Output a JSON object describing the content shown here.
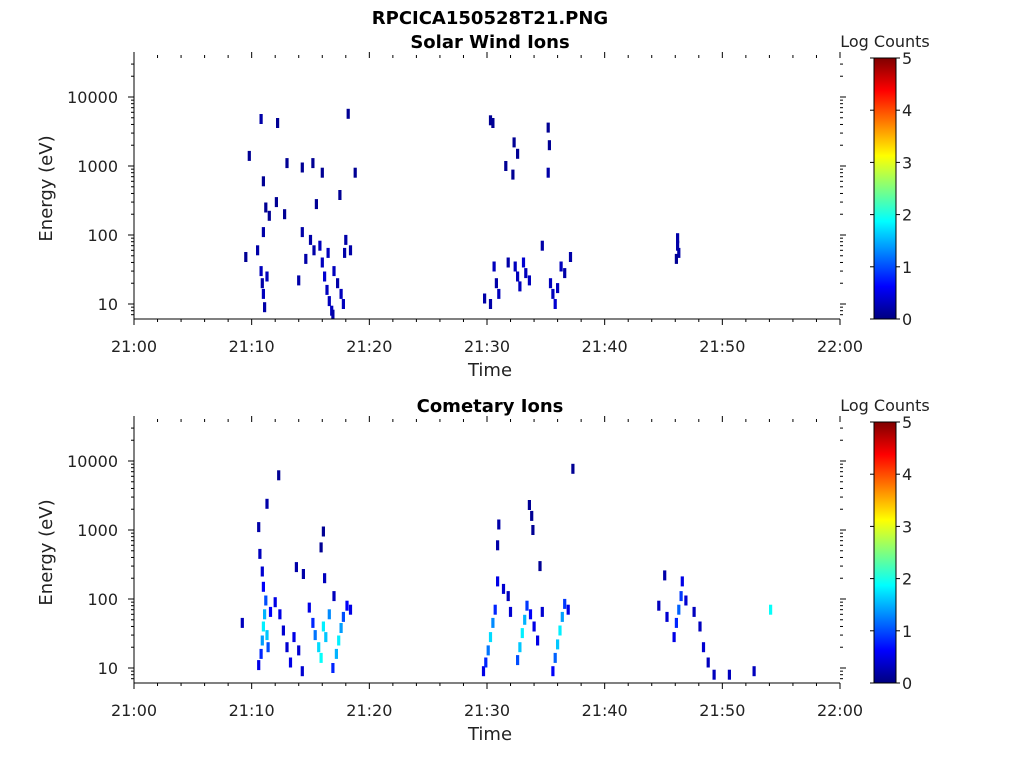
{
  "figure_title": "RPCICA150528T21.PNG",
  "colorbar": {
    "label": "Log Counts",
    "ticks": [
      "0",
      "1",
      "2",
      "3",
      "4",
      "5"
    ],
    "stops": [
      "#00007f",
      "#0000ff",
      "#007fff",
      "#00ffff",
      "#7fff7f",
      "#ffff00",
      "#ff7f00",
      "#ff0000",
      "#7f0000"
    ]
  },
  "chart_data": [
    {
      "type": "heatmap",
      "title": "Solar Wind Ions",
      "xlabel": "Time",
      "ylabel": "Energy (eV)",
      "x_ticks": [
        "21:00",
        "21:10",
        "21:20",
        "21:30",
        "21:40",
        "21:50",
        "22:00"
      ],
      "y_ticks": [
        "10",
        "100",
        "1000",
        "10000"
      ],
      "y_scale": "log",
      "zlim": [
        0,
        5
      ],
      "cells": [
        [
          9.5,
          48,
          0.1
        ],
        [
          10.5,
          60,
          0.2
        ],
        [
          10.8,
          30,
          0.3
        ],
        [
          10.9,
          20,
          0.2
        ],
        [
          11.0,
          14,
          0.3
        ],
        [
          11.1,
          9,
          0.2
        ],
        [
          11.3,
          25,
          0.3
        ],
        [
          11.0,
          110,
          0.2
        ],
        [
          11.2,
          250,
          0.1
        ],
        [
          12.1,
          300,
          0.1
        ],
        [
          13.0,
          1100,
          0.1
        ],
        [
          11.0,
          600,
          0.1
        ],
        [
          10.8,
          4800,
          0.2
        ],
        [
          12.2,
          4200,
          0.1
        ],
        [
          9.8,
          1400,
          0.1
        ],
        [
          11.5,
          190,
          0.1
        ],
        [
          12.8,
          200,
          0.1
        ],
        [
          14.3,
          110,
          0.2
        ],
        [
          14.6,
          45,
          0.2
        ],
        [
          15.0,
          85,
          0.2
        ],
        [
          15.3,
          60,
          0.2
        ],
        [
          15.8,
          70,
          0.3
        ],
        [
          16.0,
          40,
          0.3
        ],
        [
          16.2,
          25,
          0.4
        ],
        [
          16.4,
          16,
          0.3
        ],
        [
          16.6,
          11,
          0.3
        ],
        [
          16.8,
          8,
          0.3
        ],
        [
          16.5,
          55,
          0.3
        ],
        [
          17.0,
          30,
          0.3
        ],
        [
          17.3,
          20,
          0.2
        ],
        [
          17.6,
          14,
          0.3
        ],
        [
          17.8,
          10,
          0.3
        ],
        [
          18.0,
          85,
          0.2
        ],
        [
          17.9,
          55,
          0.2
        ],
        [
          18.4,
          60,
          0.2
        ],
        [
          15.2,
          1100,
          0.1
        ],
        [
          14.3,
          950,
          0.1
        ],
        [
          16.0,
          800,
          0.1
        ],
        [
          18.8,
          800,
          0.1
        ],
        [
          17.5,
          380,
          0.1
        ],
        [
          18.2,
          5700,
          0.1
        ],
        [
          15.5,
          280,
          0.1
        ],
        [
          14.0,
          22,
          0.2
        ],
        [
          16.9,
          7,
          0.2
        ],
        [
          29.8,
          12,
          0.2
        ],
        [
          30.3,
          10,
          0.2
        ],
        [
          30.6,
          35,
          0.3
        ],
        [
          30.8,
          20,
          0.2
        ],
        [
          31.0,
          14,
          0.3
        ],
        [
          32.4,
          35,
          0.3
        ],
        [
          32.6,
          25,
          0.3
        ],
        [
          32.8,
          18,
          0.3
        ],
        [
          33.1,
          40,
          0.4
        ],
        [
          33.3,
          28,
          0.3
        ],
        [
          33.6,
          22,
          0.3
        ],
        [
          35.4,
          20,
          0.3
        ],
        [
          35.6,
          14,
          0.3
        ],
        [
          35.8,
          10,
          0.4
        ],
        [
          36.0,
          17,
          0.3
        ],
        [
          36.3,
          35,
          0.3
        ],
        [
          36.6,
          28,
          0.2
        ],
        [
          37.1,
          48,
          0.2
        ],
        [
          31.8,
          40,
          0.2
        ],
        [
          34.7,
          70,
          0.2
        ],
        [
          30.3,
          4600,
          0.1
        ],
        [
          30.5,
          4200,
          0.1
        ],
        [
          32.3,
          2200,
          0.1
        ],
        [
          32.6,
          1500,
          0.1
        ],
        [
          35.2,
          3600,
          0.1
        ],
        [
          35.3,
          2000,
          0.1
        ],
        [
          35.2,
          800,
          0.2
        ],
        [
          31.6,
          1000,
          0.1
        ],
        [
          32.2,
          750,
          0.1
        ],
        [
          46.2,
          90,
          0.2
        ],
        [
          46.2,
          70,
          0.2
        ],
        [
          46.3,
          55,
          0.2
        ],
        [
          46.1,
          45,
          0.1
        ]
      ]
    },
    {
      "type": "heatmap",
      "title": "Cometary Ions",
      "xlabel": "Time",
      "ylabel": "Energy (eV)",
      "x_ticks": [
        "21:00",
        "21:10",
        "21:20",
        "21:30",
        "21:40",
        "21:50",
        "22:00"
      ],
      "y_ticks": [
        "10",
        "100",
        "1000",
        "10000"
      ],
      "y_scale": "log",
      "zlim": [
        0,
        5
      ],
      "cells": [
        [
          9.2,
          45,
          0.3
        ],
        [
          10.6,
          11,
          0.5
        ],
        [
          10.8,
          16,
          0.8
        ],
        [
          10.9,
          25,
          1.4
        ],
        [
          11.0,
          40,
          1.8
        ],
        [
          11.1,
          60,
          1.5
        ],
        [
          11.2,
          95,
          1.0
        ],
        [
          11.0,
          150,
          0.6
        ],
        [
          10.9,
          250,
          0.4
        ],
        [
          10.7,
          450,
          0.3
        ],
        [
          10.6,
          1100,
          0.2
        ],
        [
          11.3,
          2400,
          0.2
        ],
        [
          12.3,
          6200,
          0.1
        ],
        [
          11.3,
          30,
          1.6
        ],
        [
          11.4,
          20,
          1.0
        ],
        [
          11.6,
          65,
          0.6
        ],
        [
          12.0,
          90,
          0.5
        ],
        [
          12.4,
          60,
          0.5
        ],
        [
          12.7,
          35,
          0.4
        ],
        [
          13.0,
          20,
          0.4
        ],
        [
          13.3,
          12,
          0.5
        ],
        [
          13.6,
          28,
          0.5
        ],
        [
          14.0,
          18,
          0.4
        ],
        [
          14.3,
          9,
          0.4
        ],
        [
          14.9,
          75,
          0.5
        ],
        [
          15.2,
          45,
          0.8
        ],
        [
          15.4,
          30,
          1.2
        ],
        [
          15.7,
          20,
          1.7
        ],
        [
          15.9,
          14,
          1.9
        ],
        [
          16.1,
          40,
          1.8
        ],
        [
          16.3,
          28,
          1.6
        ],
        [
          16.6,
          60,
          1.3
        ],
        [
          16.9,
          10,
          0.8
        ],
        [
          17.2,
          16,
          1.5
        ],
        [
          17.4,
          25,
          1.8
        ],
        [
          17.6,
          38,
          1.4
        ],
        [
          17.8,
          55,
          1.0
        ],
        [
          18.1,
          80,
          0.6
        ],
        [
          18.4,
          70,
          0.5
        ],
        [
          17.0,
          110,
          0.3
        ],
        [
          16.2,
          200,
          0.3
        ],
        [
          13.8,
          290,
          0.2
        ],
        [
          14.4,
          230,
          0.2
        ],
        [
          15.9,
          560,
          0.1
        ],
        [
          16.1,
          950,
          0.1
        ],
        [
          29.7,
          9,
          0.5
        ],
        [
          29.9,
          12,
          0.8
        ],
        [
          30.1,
          18,
          1.2
        ],
        [
          30.3,
          28,
          1.7
        ],
        [
          30.5,
          45,
          1.3
        ],
        [
          30.7,
          70,
          0.8
        ],
        [
          30.9,
          180,
          0.5
        ],
        [
          30.9,
          600,
          0.2
        ],
        [
          31.0,
          1200,
          0.2
        ],
        [
          31.4,
          140,
          0.4
        ],
        [
          31.8,
          110,
          0.3
        ],
        [
          32.6,
          13,
          1.0
        ],
        [
          32.8,
          20,
          1.6
        ],
        [
          33.0,
          32,
          1.8
        ],
        [
          33.2,
          50,
          1.5
        ],
        [
          33.4,
          80,
          0.9
        ],
        [
          33.7,
          60,
          0.6
        ],
        [
          34.0,
          40,
          0.5
        ],
        [
          34.3,
          25,
          0.5
        ],
        [
          33.6,
          2300,
          0.1
        ],
        [
          33.8,
          1600,
          0.1
        ],
        [
          33.9,
          1000,
          0.1
        ],
        [
          34.5,
          300,
          0.1
        ],
        [
          35.6,
          9,
          0.6
        ],
        [
          35.8,
          14,
          1.1
        ],
        [
          36.0,
          22,
          1.6
        ],
        [
          36.2,
          35,
          1.8
        ],
        [
          36.4,
          55,
          1.4
        ],
        [
          36.6,
          85,
          0.9
        ],
        [
          36.9,
          70,
          0.5
        ],
        [
          37.3,
          7700,
          0.1
        ],
        [
          34.7,
          65,
          0.4
        ],
        [
          32.0,
          65,
          0.4
        ],
        [
          44.6,
          80,
          0.3
        ],
        [
          45.1,
          220,
          0.2
        ],
        [
          45.3,
          55,
          0.4
        ],
        [
          45.9,
          28,
          0.5
        ],
        [
          46.1,
          45,
          0.8
        ],
        [
          46.3,
          70,
          1.1
        ],
        [
          46.5,
          110,
          0.9
        ],
        [
          46.6,
          180,
          0.5
        ],
        [
          46.9,
          95,
          0.4
        ],
        [
          47.6,
          65,
          0.3
        ],
        [
          48.1,
          40,
          0.3
        ],
        [
          48.4,
          20,
          0.4
        ],
        [
          48.8,
          12,
          0.3
        ],
        [
          49.3,
          8,
          0.3
        ],
        [
          50.6,
          8,
          0.3
        ],
        [
          52.7,
          9,
          0.3
        ],
        [
          54.1,
          70,
          1.9
        ]
      ]
    }
  ]
}
